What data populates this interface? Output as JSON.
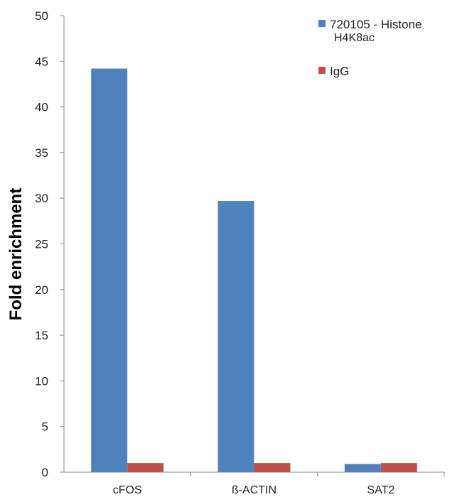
{
  "chart_data": {
    "type": "bar",
    "title": "",
    "xlabel": "",
    "ylabel": "Fold enrichment",
    "ylim": [
      0,
      50
    ],
    "yticks": [
      0,
      5,
      10,
      15,
      20,
      25,
      30,
      35,
      40,
      45,
      50
    ],
    "categories": [
      "cFOS",
      "ß-ACTIN",
      "SAT2"
    ],
    "series": [
      {
        "name": "720105 - Histone H4K8ac",
        "color": "#4f81bd",
        "values": [
          44.2,
          29.7,
          0.9
        ]
      },
      {
        "name": "IgG",
        "color": "#c0504d",
        "values": [
          1.0,
          1.0,
          1.0
        ]
      }
    ],
    "legend": {
      "position": "top-right",
      "entries": [
        {
          "line1": "720105 - Histone",
          "line2": "H4K8ac",
          "color": "#4f81bd"
        },
        {
          "line1": "IgG",
          "line2": "",
          "color": "#c0504d"
        }
      ]
    },
    "grid": false
  }
}
